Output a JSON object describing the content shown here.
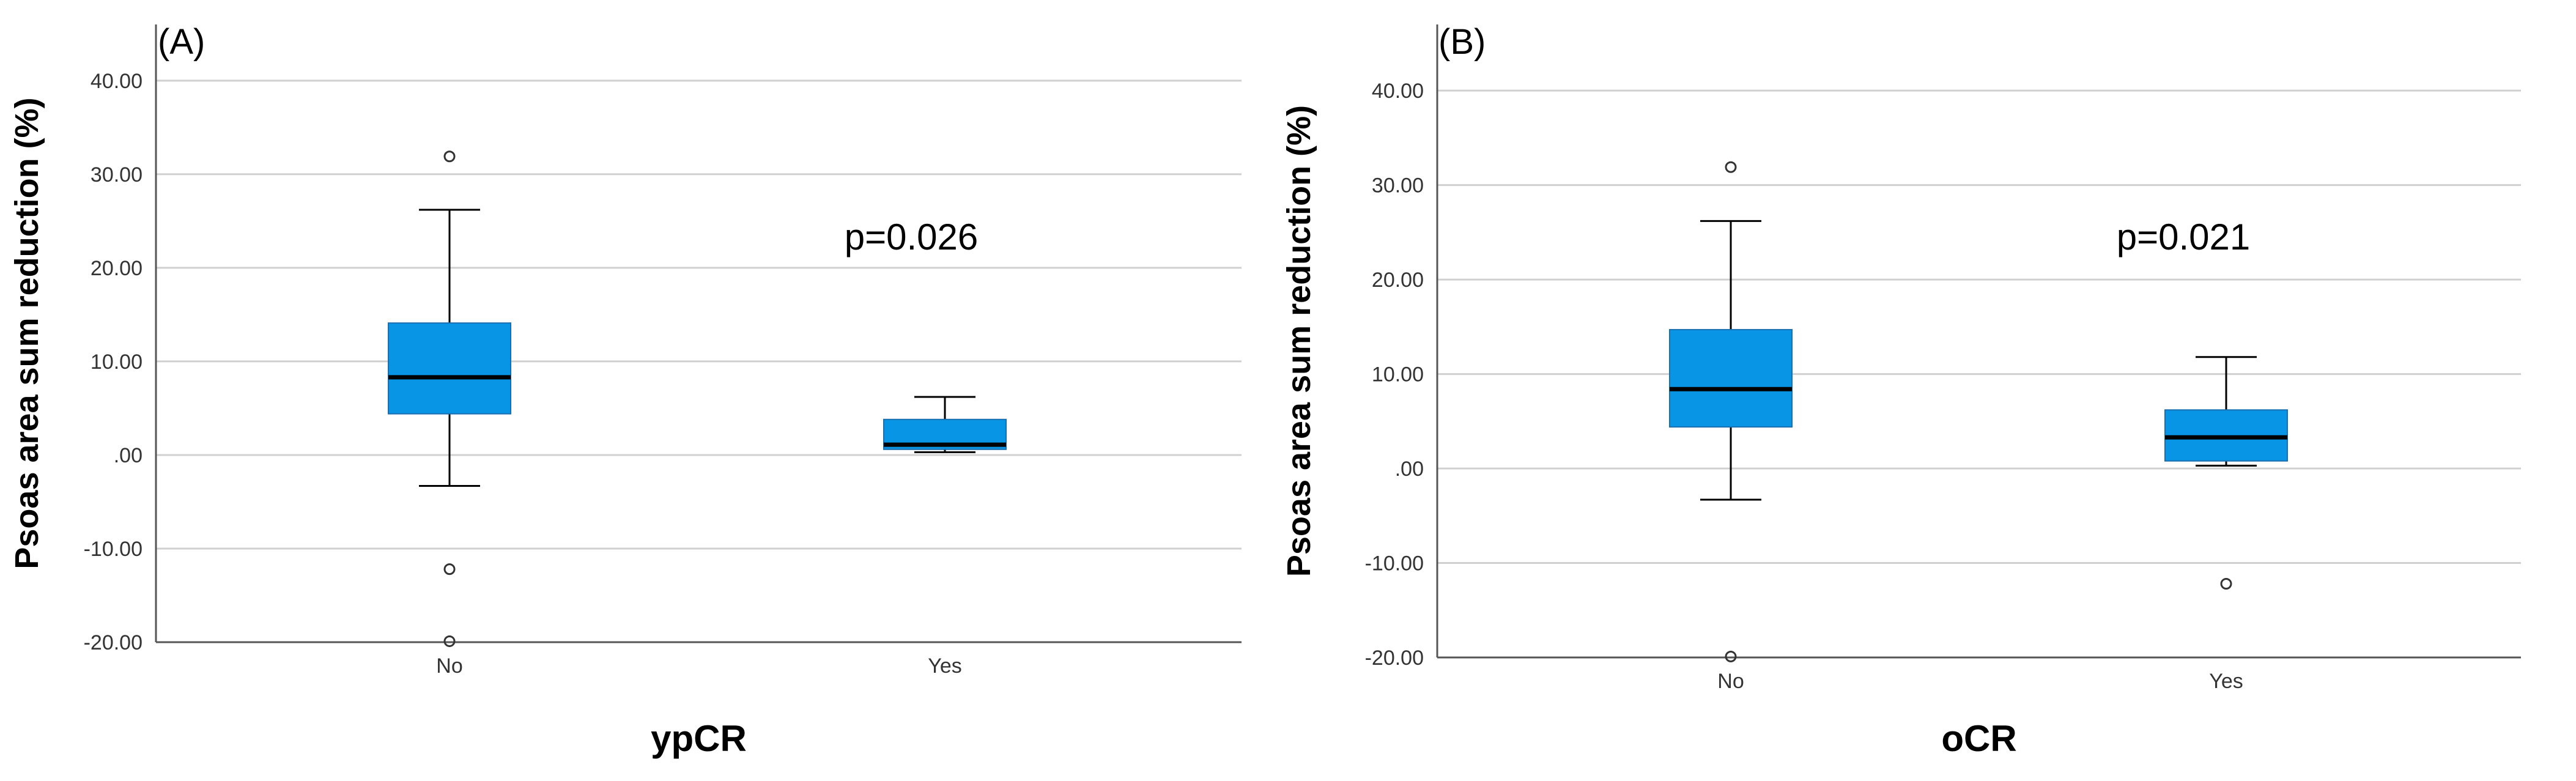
{
  "chart_data": [
    {
      "type": "box",
      "panel_label": "(A)",
      "xlabel": "ypCR",
      "ylabel": "Psoas area sum reduction (%)",
      "ylim": [
        -20,
        46
      ],
      "yticks": [
        -20,
        -10,
        0,
        10,
        20,
        30,
        40
      ],
      "ytick_labels": [
        "-20.00",
        "-10.00",
        ".00",
        "10.00",
        "20.00",
        "30.00",
        "40.00"
      ],
      "grid": true,
      "box_color": "#0895e6",
      "annotation": "p=0.026",
      "categories": [
        "No",
        "Yes"
      ],
      "boxes": [
        {
          "category": "No",
          "whisker_low": -3.3,
          "q1": 4.4,
          "median": 8.3,
          "q3": 14.1,
          "whisker_high": 26.2,
          "outliers": [
            31.9,
            -12.2,
            -19.9
          ]
        },
        {
          "category": "Yes",
          "whisker_low": 0.3,
          "q1": 0.6,
          "median": 1.1,
          "q3": 3.8,
          "whisker_high": 6.2,
          "outliers": []
        }
      ]
    },
    {
      "type": "box",
      "panel_label": "(B)",
      "xlabel": "oCR",
      "ylabel": "Psoas area sum reduction (%)",
      "ylim": [
        -20,
        47
      ],
      "yticks": [
        -20,
        -10,
        0,
        10,
        20,
        30,
        40
      ],
      "ytick_labels": [
        "-20.00",
        "-10.00",
        ".00",
        "10.00",
        "20.00",
        "30.00",
        "40.00"
      ],
      "grid": true,
      "box_color": "#0895e6",
      "annotation": "p=0.021",
      "categories": [
        "No",
        "Yes"
      ],
      "boxes": [
        {
          "category": "No",
          "whisker_low": -3.3,
          "q1": 4.4,
          "median": 8.4,
          "q3": 14.7,
          "whisker_high": 26.2,
          "outliers": [
            31.9,
            -19.9
          ]
        },
        {
          "category": "Yes",
          "whisker_low": 0.3,
          "q1": 0.8,
          "median": 3.3,
          "q3": 6.2,
          "whisker_high": 11.8,
          "outliers": [
            -12.2
          ]
        }
      ]
    }
  ]
}
